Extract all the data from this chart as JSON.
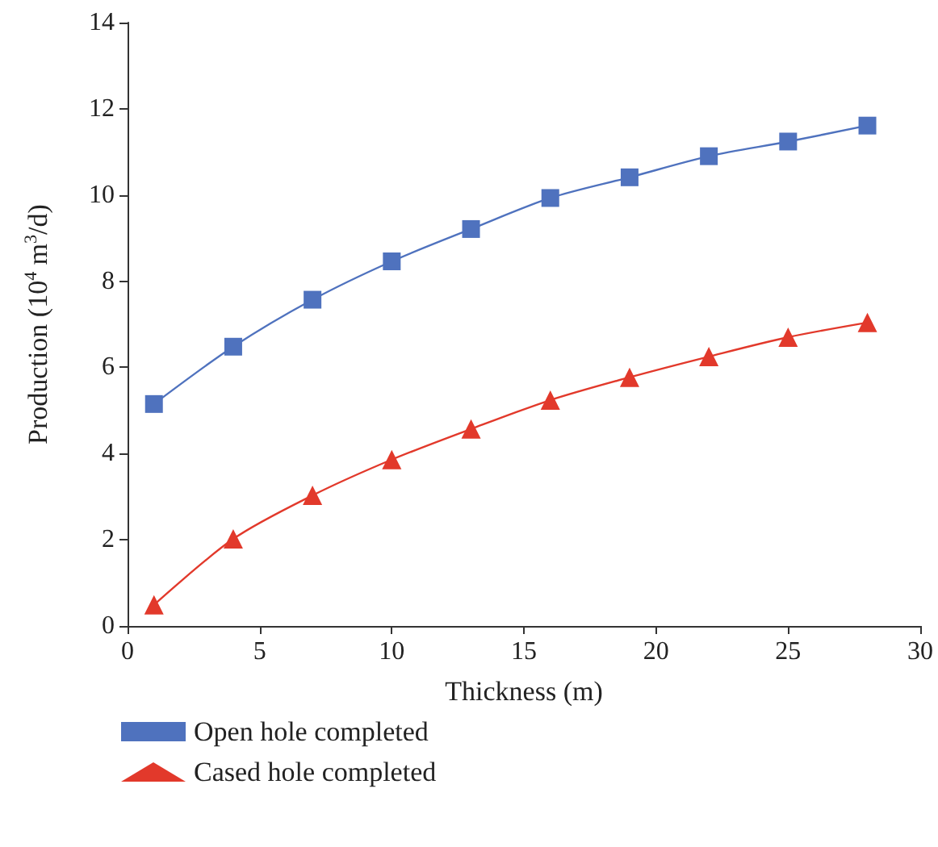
{
  "chart_data": {
    "type": "line",
    "xlabel": "Thickness (m)",
    "ylabel": "Production (10$^{4}$ m$^{3}$/d)",
    "x": [
      1,
      4,
      7,
      10,
      13,
      16,
      19,
      22,
      25,
      28
    ],
    "series": [
      {
        "name": "Open hole completed",
        "color": "#4f72be",
        "marker": "square",
        "values": [
          5.15,
          6.48,
          7.57,
          8.46,
          9.21,
          9.93,
          10.41,
          10.9,
          11.24,
          11.61
        ]
      },
      {
        "name": "Cased hole completed",
        "color": "#e2392b",
        "marker": "triangle",
        "values": [
          0.49,
          2.02,
          3.03,
          3.86,
          4.57,
          5.24,
          5.77,
          6.25,
          6.7,
          7.04
        ]
      }
    ],
    "xlim": [
      0,
      30
    ],
    "xticks": [
      0,
      5,
      10,
      15,
      20,
      25,
      30
    ],
    "ylim": [
      0,
      14
    ],
    "yticks": [
      0,
      2,
      4,
      6,
      8,
      10,
      12,
      14
    ],
    "grid": false,
    "legend": "bottom left",
    "line_style": "solid"
  }
}
